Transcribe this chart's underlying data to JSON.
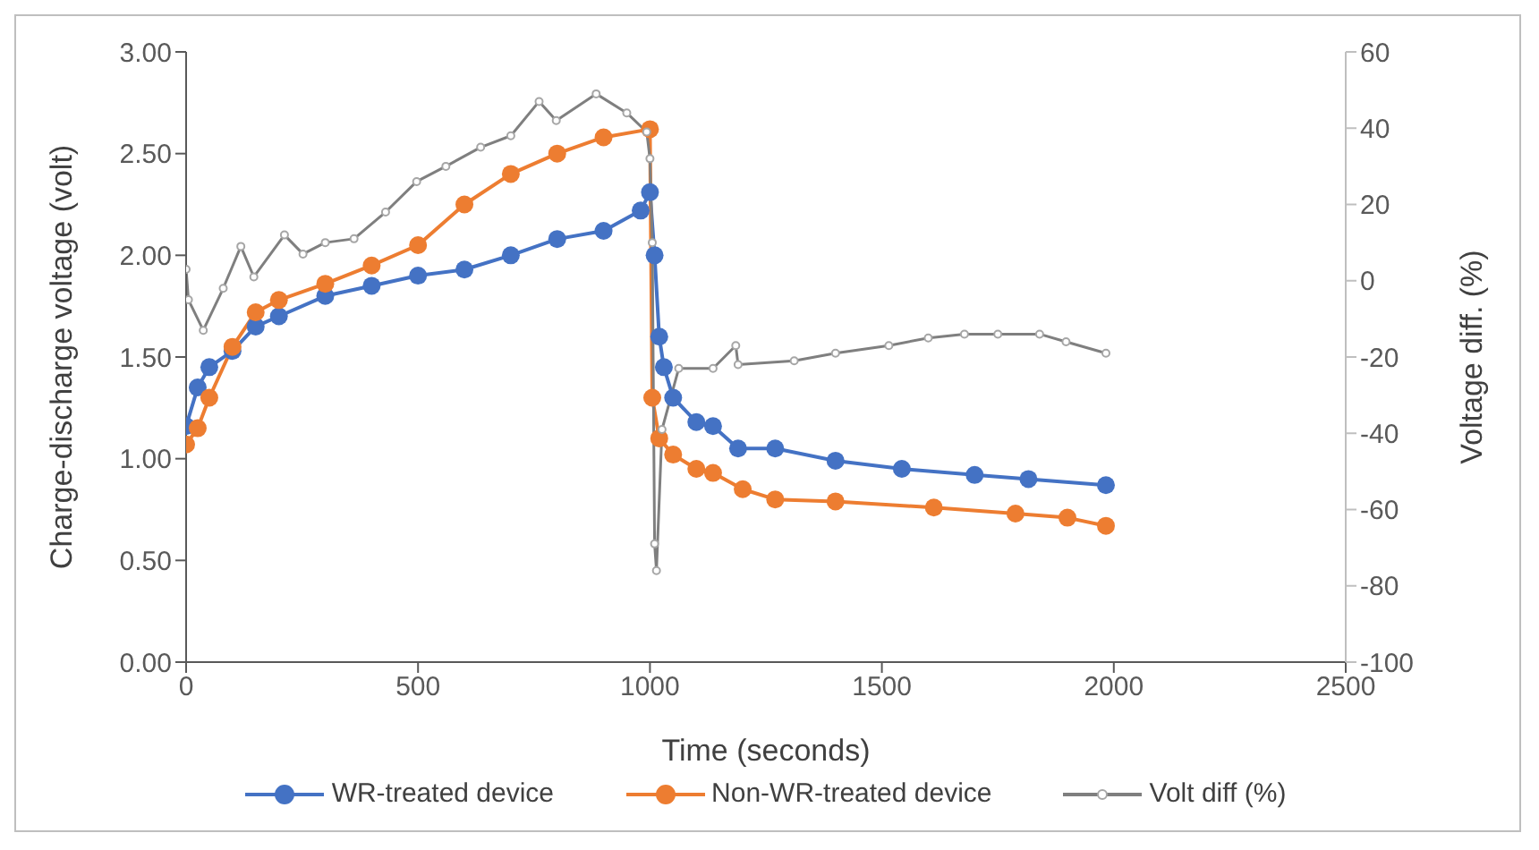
{
  "chart_data": {
    "type": "line",
    "xlabel": "Time (seconds)",
    "ylabel": "Charge-discharge voltage (volt)",
    "y2label": "Voltage diff. (%)",
    "xlim": [
      0,
      2500
    ],
    "xticks": [
      0,
      500,
      1000,
      1500,
      2000,
      2500
    ],
    "ylim": [
      0,
      3
    ],
    "yticks": [
      {
        "value": 0,
        "label": "0.00"
      },
      {
        "value": 0.5,
        "label": "0.50"
      },
      {
        "value": 1,
        "label": "1.00"
      },
      {
        "value": 1.5,
        "label": "1.50"
      },
      {
        "value": 2,
        "label": "2.00"
      },
      {
        "value": 2.5,
        "label": "2.50"
      },
      {
        "value": 3,
        "label": "3.00"
      }
    ],
    "y2lim": [
      -100,
      60
    ],
    "y2ticks": [
      -100,
      -80,
      -60,
      -40,
      -20,
      0,
      20,
      40,
      60
    ],
    "legend": "bottom",
    "marker": "circle",
    "line_style": "solid",
    "series": [
      {
        "name": "WR-treated device",
        "color": "#4472c4",
        "x": [
          0,
          25,
          50,
          100,
          150,
          200,
          300,
          400,
          500,
          600,
          700,
          800,
          900,
          980,
          1000,
          1010,
          1020,
          1030,
          1050,
          1100,
          1136,
          1190,
          1270,
          1400,
          1543,
          1700,
          1816,
          1983
        ],
        "values": [
          1.16,
          1.35,
          1.45,
          1.53,
          1.65,
          1.7,
          1.8,
          1.85,
          1.9,
          1.93,
          2.0,
          2.08,
          2.12,
          2.22,
          2.31,
          2.0,
          1.6,
          1.45,
          1.3,
          1.18,
          1.16,
          1.05,
          1.05,
          0.99,
          0.95,
          0.92,
          0.9,
          0.87
        ]
      },
      {
        "name": "Non-WR-treated device",
        "color": "#ed7d31",
        "x": [
          0,
          25,
          50,
          100,
          150,
          200,
          300,
          400,
          500,
          600,
          700,
          800,
          900,
          1000,
          1005,
          1020,
          1050,
          1100,
          1136,
          1200,
          1270,
          1400,
          1612,
          1788,
          1900,
          1983
        ],
        "values": [
          1.07,
          1.15,
          1.3,
          1.55,
          1.72,
          1.78,
          1.86,
          1.95,
          2.05,
          2.25,
          2.4,
          2.5,
          2.58,
          2.62,
          1.3,
          1.1,
          1.02,
          0.95,
          0.93,
          0.85,
          0.8,
          0.79,
          0.76,
          0.73,
          0.71,
          0.67
        ]
      },
      {
        "name": "Volt diff (%)",
        "color": "#7f7f7f",
        "axis": "y2",
        "x": [
          0,
          5,
          37,
          80,
          118,
          146,
          212,
          252,
          300,
          362,
          430,
          497,
          560,
          635,
          700,
          761,
          798,
          884,
          950,
          993,
          1000,
          1005,
          1010,
          1014,
          1026,
          1062,
          1136,
          1185,
          1190,
          1311,
          1400,
          1515,
          1600,
          1678,
          1750,
          1840,
          1897,
          1983
        ],
        "values": [
          3,
          -5,
          -13,
          -2,
          9,
          1,
          12,
          7,
          10,
          11,
          18,
          26,
          30,
          35,
          38,
          47,
          42,
          49,
          44,
          39,
          32,
          10,
          -69,
          -76,
          -39,
          -23,
          -23,
          -17,
          -22,
          -21,
          -19,
          -17,
          -15,
          -14,
          -14,
          -14,
          -16,
          -19
        ]
      }
    ]
  }
}
